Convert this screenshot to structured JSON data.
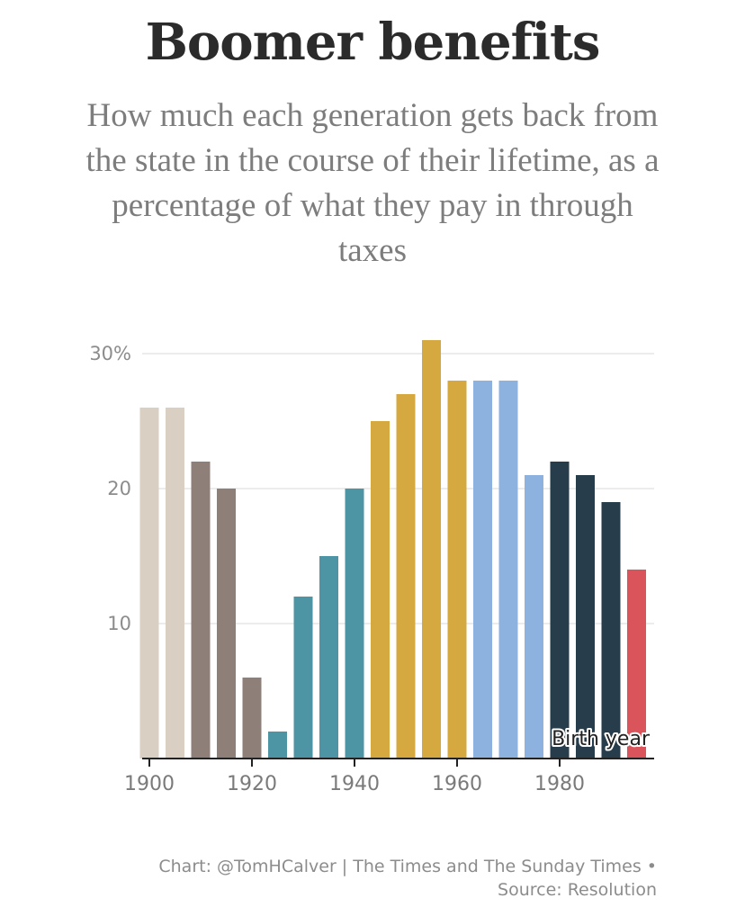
{
  "title": "Boomer benefits",
  "subtitle": "How much each generation gets back from the state in the course of their lifetime, as a percentage of what they pay in through taxes",
  "credit": {
    "line1": "Chart: @TomHCalver | The Times and The Sunday Times •",
    "line2": "Source: Resolution"
  },
  "chart_data": {
    "type": "bar",
    "xlabel": "Birth year",
    "ylabel": "",
    "ylim": [
      0,
      30
    ],
    "yticks": [
      {
        "value": 10,
        "label": "10"
      },
      {
        "value": 20,
        "label": "20"
      },
      {
        "value": 30,
        "label": "30%"
      }
    ],
    "xticks": [
      1900,
      1920,
      1940,
      1960,
      1980
    ],
    "grid": true,
    "bars": [
      {
        "year": 1900,
        "value": 26,
        "color": "#d9cfc3"
      },
      {
        "year": 1905,
        "value": 26,
        "color": "#d9cfc3"
      },
      {
        "year": 1910,
        "value": 22,
        "color": "#8e7f79"
      },
      {
        "year": 1915,
        "value": 20,
        "color": "#8e7f79"
      },
      {
        "year": 1920,
        "value": 6,
        "color": "#8e7f79"
      },
      {
        "year": 1925,
        "value": 2,
        "color": "#4d95a5"
      },
      {
        "year": 1930,
        "value": 12,
        "color": "#4d95a5"
      },
      {
        "year": 1935,
        "value": 15,
        "color": "#4d95a5"
      },
      {
        "year": 1940,
        "value": 20,
        "color": "#4d95a5"
      },
      {
        "year": 1945,
        "value": 25,
        "color": "#d6a940"
      },
      {
        "year": 1950,
        "value": 27,
        "color": "#d6a940"
      },
      {
        "year": 1955,
        "value": 31,
        "color": "#d6a940"
      },
      {
        "year": 1960,
        "value": 28,
        "color": "#d6a940"
      },
      {
        "year": 1965,
        "value": 28,
        "color": "#8eb2df"
      },
      {
        "year": 1970,
        "value": 28,
        "color": "#8eb2df"
      },
      {
        "year": 1975,
        "value": 21,
        "color": "#8eb2df"
      },
      {
        "year": 1980,
        "value": 22,
        "color": "#283d4c"
      },
      {
        "year": 1985,
        "value": 21,
        "color": "#283d4c"
      },
      {
        "year": 1990,
        "value": 19,
        "color": "#283d4c"
      },
      {
        "year": 1995,
        "value": 14,
        "color": "#d9545b"
      }
    ]
  }
}
